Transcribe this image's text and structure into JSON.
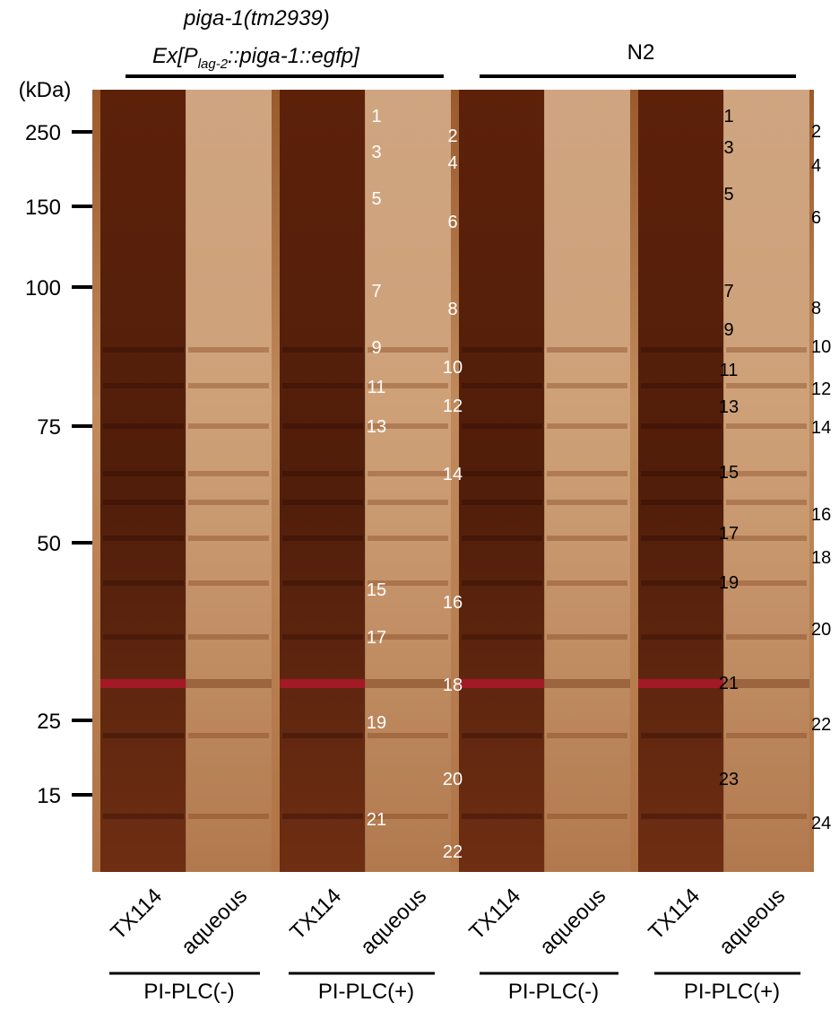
{
  "header": {
    "left_line1": "piga-1(tm2939)",
    "left_line2_a": "Ex[P",
    "left_line2_sub": "lag-2",
    "left_line2_b": "::piga-1::egfp]",
    "right": "N2"
  },
  "marker_unit": "(kDa)",
  "markers": [
    250,
    150,
    100,
    75,
    50,
    25,
    15
  ],
  "bands_left": [
    1,
    2,
    3,
    4,
    5,
    6,
    7,
    8,
    9,
    10,
    11,
    12,
    13,
    14,
    15,
    16,
    17,
    18,
    19,
    20,
    21,
    22
  ],
  "bands_right": [
    1,
    2,
    3,
    4,
    5,
    6,
    7,
    8,
    9,
    10,
    11,
    12,
    13,
    14,
    15,
    16,
    17,
    18,
    19,
    20,
    21,
    22,
    23,
    24
  ],
  "lanes": [
    "TX114",
    "aqueous",
    "TX114",
    "aqueous",
    "TX114",
    "aqueous",
    "TX114",
    "aqueous"
  ],
  "groups": [
    "PI-PLC(-)",
    "PI-PLC(+)",
    "PI-PLC(-)",
    "PI-PLC(+)"
  ]
}
